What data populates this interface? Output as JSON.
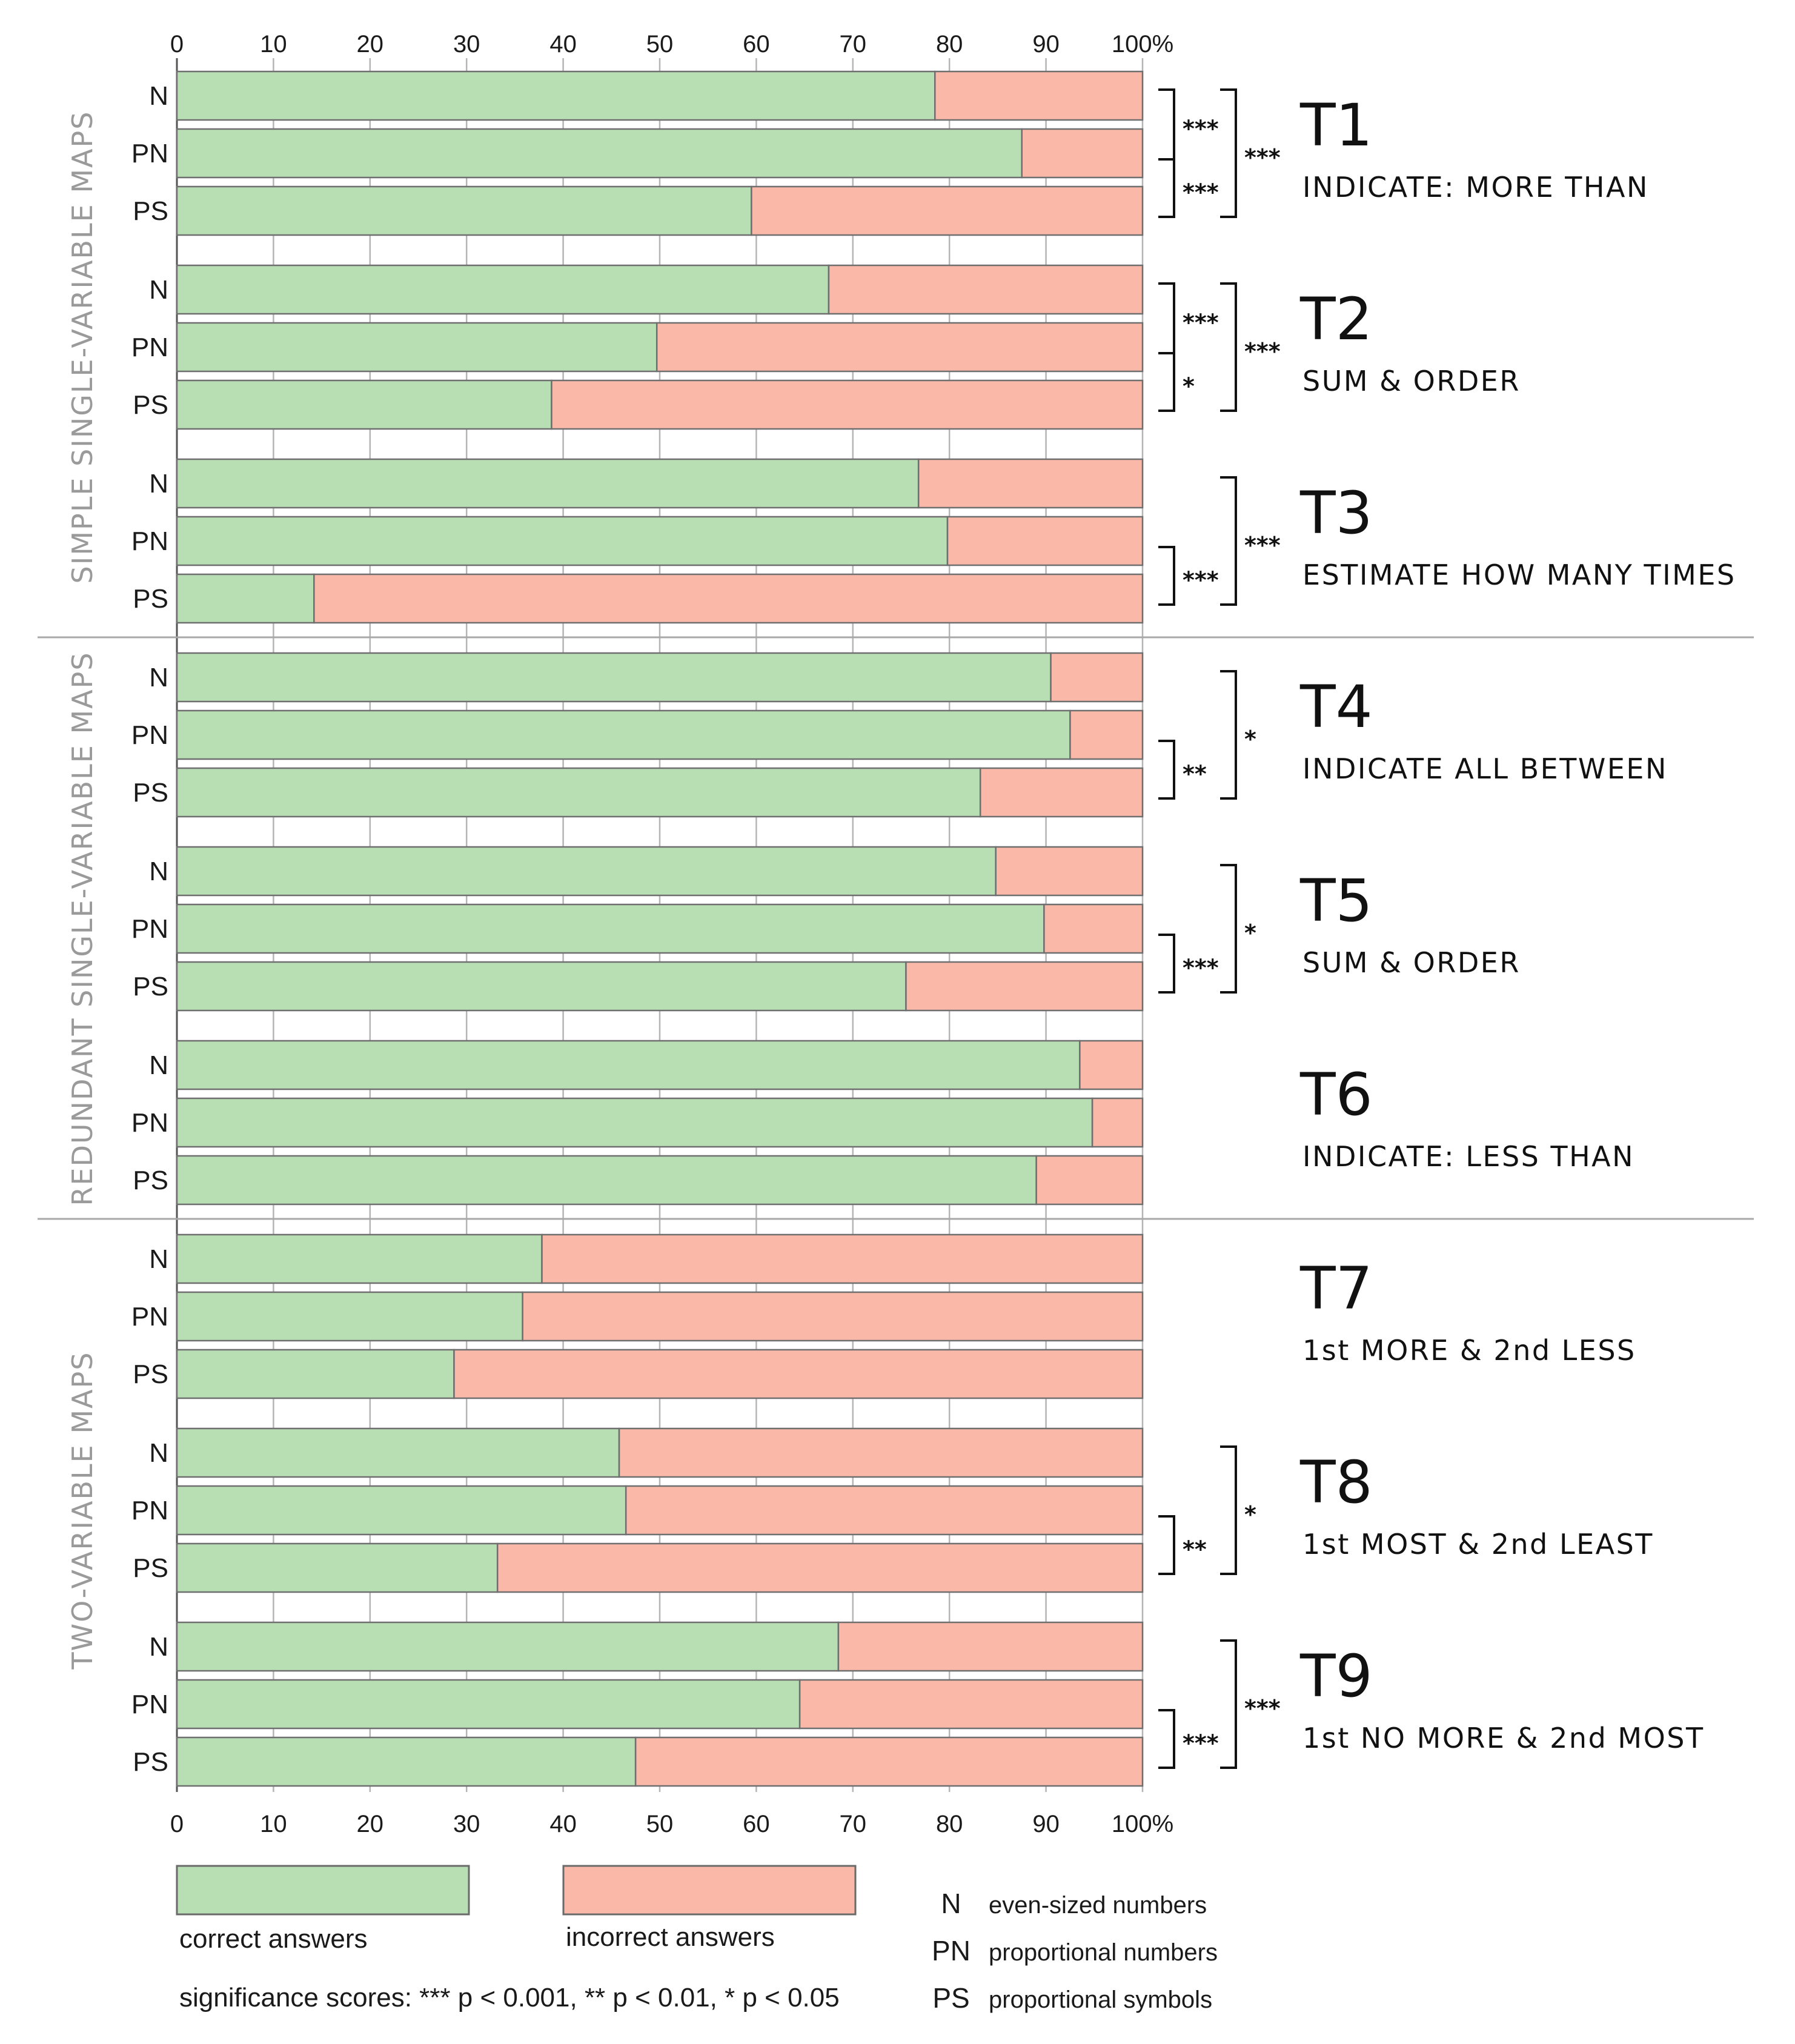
{
  "chart_data": {
    "type": "bar",
    "stacked": true,
    "orientation": "horizontal",
    "x_ticks": [
      "0",
      "10",
      "20",
      "30",
      "40",
      "50",
      "60",
      "70",
      "80",
      "90",
      "100%"
    ],
    "xlim": [
      0,
      100
    ],
    "series": [
      {
        "name": "correct answers",
        "color": "#b8dfb4"
      },
      {
        "name": "incorrect answers",
        "color": "#fab8a8"
      }
    ],
    "groups": [
      {
        "label": "SIMPLE SINGLE-VARIABLE MAPS",
        "tasks": [
          0,
          1,
          2
        ]
      },
      {
        "label": "REDUNDANT SINGLE-VARIABLE MAPS",
        "tasks": [
          3,
          4,
          5
        ]
      },
      {
        "label": "TWO-VARIABLE MAPS",
        "tasks": [
          6,
          7,
          8
        ]
      }
    ],
    "tasks": [
      {
        "code": "T1",
        "subtitle": "INDICATE: MORE THAN",
        "rows": [
          {
            "label": "N",
            "correct": 78.5
          },
          {
            "label": "PN",
            "correct": 87.5
          },
          {
            "label": "PS",
            "correct": 59.5
          }
        ],
        "sig": {
          "N_PN": "***",
          "PN_PS": "***",
          "N_PS": "***"
        }
      },
      {
        "code": "T2",
        "subtitle": "SUM & ORDER",
        "rows": [
          {
            "label": "N",
            "correct": 67.5
          },
          {
            "label": "PN",
            "correct": 49.7
          },
          {
            "label": "PS",
            "correct": 38.8
          }
        ],
        "sig": {
          "N_PN": "***",
          "PN_PS": "*",
          "N_PS": "***"
        }
      },
      {
        "code": "T3",
        "subtitle": "ESTIMATE HOW MANY TIMES",
        "rows": [
          {
            "label": "N",
            "correct": 76.8
          },
          {
            "label": "PN",
            "correct": 79.8
          },
          {
            "label": "PS",
            "correct": 14.2
          }
        ],
        "sig": {
          "PN_PS": "***",
          "N_PS": "***"
        }
      },
      {
        "code": "T4",
        "subtitle": "INDICATE ALL BETWEEN",
        "rows": [
          {
            "label": "N",
            "correct": 90.5
          },
          {
            "label": "PN",
            "correct": 92.5
          },
          {
            "label": "PS",
            "correct": 83.2
          }
        ],
        "sig": {
          "PN_PS": "**",
          "N_PS": "*"
        }
      },
      {
        "code": "T5",
        "subtitle": "SUM & ORDER",
        "rows": [
          {
            "label": "N",
            "correct": 84.8
          },
          {
            "label": "PN",
            "correct": 89.8
          },
          {
            "label": "PS",
            "correct": 75.5
          }
        ],
        "sig": {
          "PN_PS": "***",
          "N_PS": "*"
        }
      },
      {
        "code": "T6",
        "subtitle": "INDICATE: LESS THAN",
        "rows": [
          {
            "label": "N",
            "correct": 93.5
          },
          {
            "label": "PN",
            "correct": 94.8
          },
          {
            "label": "PS",
            "correct": 89.0
          }
        ],
        "sig": {}
      },
      {
        "code": "T7",
        "subtitle": "1st MORE & 2nd LESS",
        "rows": [
          {
            "label": "N",
            "correct": 37.8
          },
          {
            "label": "PN",
            "correct": 35.8
          },
          {
            "label": "PS",
            "correct": 28.7
          }
        ],
        "sig": {}
      },
      {
        "code": "T8",
        "subtitle": "1st MOST & 2nd LEAST",
        "rows": [
          {
            "label": "N",
            "correct": 45.8
          },
          {
            "label": "PN",
            "correct": 46.5
          },
          {
            "label": "PS",
            "correct": 33.2
          }
        ],
        "sig": {
          "PN_PS": "**",
          "N_PS": "*"
        }
      },
      {
        "code": "T9",
        "subtitle": "1st NO MORE & 2nd MOST",
        "rows": [
          {
            "label": "N",
            "correct": 68.5
          },
          {
            "label": "PN",
            "correct": 64.5
          },
          {
            "label": "PS",
            "correct": 47.5
          }
        ],
        "sig": {
          "PN_PS": "***",
          "N_PS": "***"
        }
      }
    ]
  },
  "legend": {
    "correct": "correct answers",
    "incorrect": "incorrect answers",
    "significance": "significance scores: *** p < 0.001, ** p < 0.01, * p < 0.05",
    "abbreviations": [
      {
        "key": "N",
        "desc": "even-sized numbers"
      },
      {
        "key": "PN",
        "desc": "proportional numbers"
      },
      {
        "key": "PS",
        "desc": "proportional symbols"
      }
    ]
  }
}
